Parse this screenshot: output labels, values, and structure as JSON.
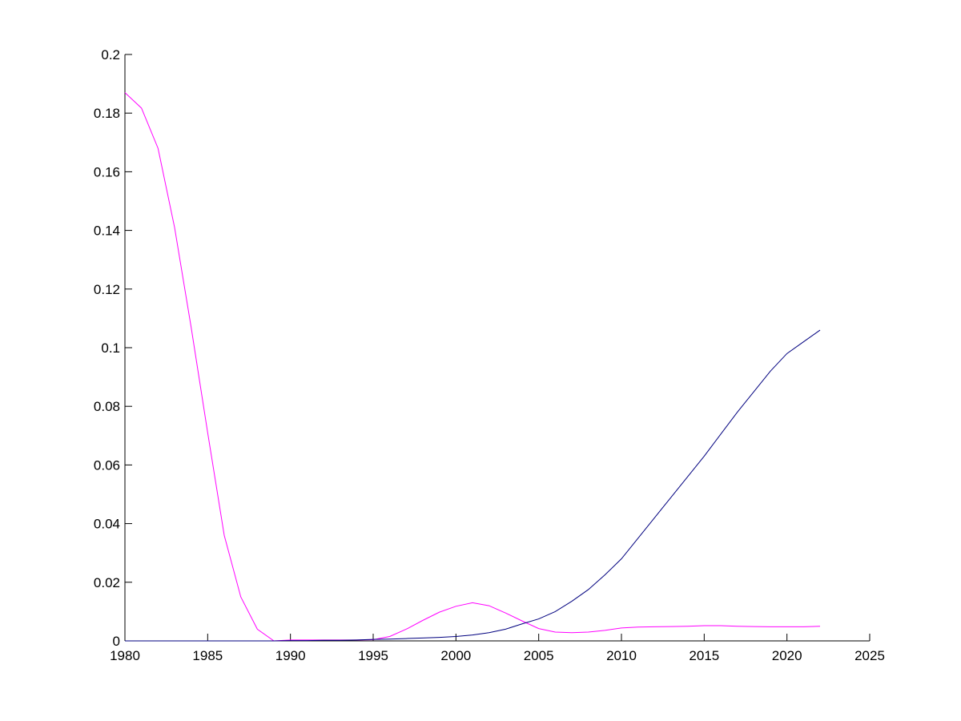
{
  "chart_data": {
    "type": "line",
    "x": [
      1980,
      1981,
      1982,
      1983,
      1984,
      1985,
      1986,
      1987,
      1988,
      1989,
      1990,
      1991,
      1992,
      1993,
      1994,
      1995,
      1996,
      1997,
      1998,
      1999,
      2000,
      2001,
      2002,
      2003,
      2004,
      2005,
      2006,
      2007,
      2008,
      2009,
      2010,
      2011,
      2012,
      2013,
      2014,
      2015,
      2016,
      2017,
      2018,
      2019,
      2020,
      2021,
      2022
    ],
    "series": [
      {
        "color": "#ff00ff",
        "values": [
          0.187,
          0.1817,
          0.168,
          0.141,
          0.107,
          0.071,
          0.036,
          0.015,
          0.004,
          0.0,
          0.0003,
          0.0003,
          0.0003,
          0.0003,
          0.0003,
          0.0004,
          0.0015,
          0.004,
          0.007,
          0.0098,
          0.0118,
          0.013,
          0.012,
          0.0095,
          0.0068,
          0.0042,
          0.003,
          0.0028,
          0.003,
          0.0036,
          0.0044,
          0.0047,
          0.0048,
          0.0049,
          0.005,
          0.0052,
          0.0052,
          0.005,
          0.0049,
          0.0048,
          0.0048,
          0.0048,
          0.005
        ]
      },
      {
        "color": "#00007f",
        "values": [
          0.0,
          0.0,
          0.0,
          0.0,
          0.0,
          0.0,
          0.0,
          0.0,
          0.0,
          0.0,
          0.0001,
          0.0001,
          0.0002,
          0.0002,
          0.0003,
          0.0005,
          0.0006,
          0.0008,
          0.001,
          0.0012,
          0.0015,
          0.002,
          0.0028,
          0.004,
          0.0058,
          0.0075,
          0.01,
          0.0135,
          0.0175,
          0.0225,
          0.028,
          0.035,
          0.042,
          0.049,
          0.056,
          0.063,
          0.0705,
          0.078,
          0.085,
          0.092,
          0.098,
          0.102,
          0.106
        ]
      }
    ],
    "xlim": [
      1980,
      2025
    ],
    "xticks": [
      1980,
      1985,
      1990,
      1995,
      2000,
      2005,
      2010,
      2015,
      2020,
      2025
    ],
    "ylim": [
      0,
      0.2
    ],
    "yticks": [
      0,
      0.02,
      0.04,
      0.06,
      0.08,
      0.1,
      0.12,
      0.14,
      0.16,
      0.18,
      0.2
    ],
    "grid": false
  }
}
